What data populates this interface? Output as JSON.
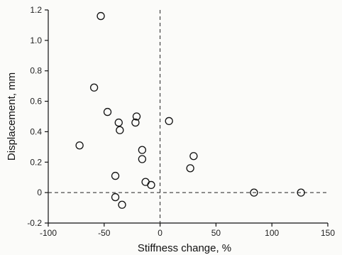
{
  "chart_data": {
    "type": "scatter",
    "title": "",
    "xlabel": "Stiffness change, %",
    "ylabel": "Displacement, mm",
    "xlim": [
      -100,
      150
    ],
    "ylim": [
      -0.2,
      1.2
    ],
    "xticks": [
      -100,
      -50,
      0,
      50,
      100,
      150
    ],
    "yticks": [
      -0.2,
      0,
      0.2,
      0.4,
      0.6,
      0.8,
      1.0,
      1.2
    ],
    "xtick_labels": [
      "-100",
      "-50",
      "0",
      "50",
      "100",
      "150"
    ],
    "ytick_labels": [
      "-0.2",
      "0",
      "0.2",
      "0.4",
      "0.6",
      "0.8",
      "1.0",
      "1.2"
    ],
    "grid": false,
    "reference_lines": {
      "x": 0,
      "y": 0,
      "style": "dashed"
    },
    "marker": "open-circle",
    "points": [
      {
        "x": -53,
        "y": 1.16
      },
      {
        "x": -59,
        "y": 0.69
      },
      {
        "x": -47,
        "y": 0.53
      },
      {
        "x": -37,
        "y": 0.46
      },
      {
        "x": -36,
        "y": 0.41
      },
      {
        "x": -21,
        "y": 0.5
      },
      {
        "x": -22,
        "y": 0.46
      },
      {
        "x": 8,
        "y": 0.47
      },
      {
        "x": -72,
        "y": 0.31
      },
      {
        "x": -16,
        "y": 0.28
      },
      {
        "x": -16,
        "y": 0.22
      },
      {
        "x": 30,
        "y": 0.24
      },
      {
        "x": 27,
        "y": 0.16
      },
      {
        "x": -40,
        "y": 0.11
      },
      {
        "x": -13,
        "y": 0.07
      },
      {
        "x": -8,
        "y": 0.05
      },
      {
        "x": -40,
        "y": -0.03
      },
      {
        "x": -34,
        "y": -0.08
      },
      {
        "x": 84,
        "y": 0.0
      },
      {
        "x": 126,
        "y": 0.0
      }
    ]
  }
}
